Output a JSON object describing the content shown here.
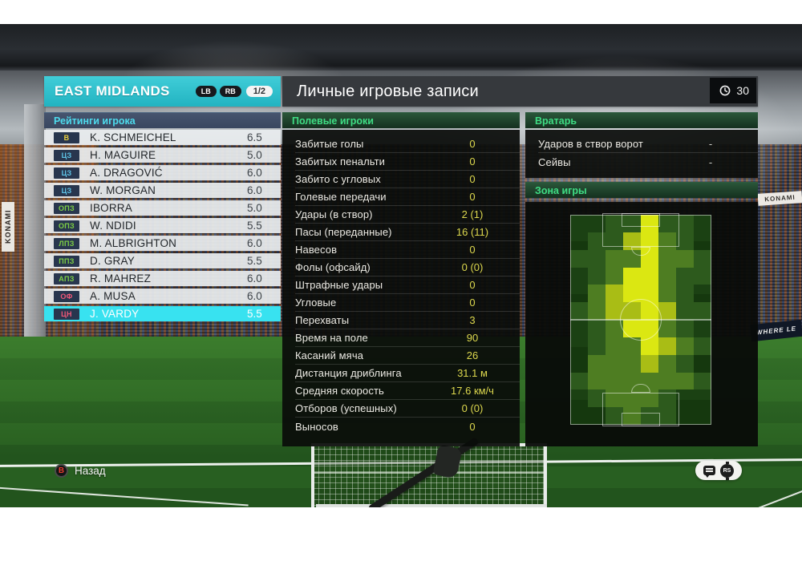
{
  "header": {
    "team_name": "EAST MIDLANDS",
    "nav_buttons": [
      "LB",
      "RB"
    ],
    "page_indicator": "1/2",
    "title": "Личные игровые записи",
    "clock_value": "30"
  },
  "ratings_panel": {
    "title": "Рейтинги игрока",
    "players": [
      {
        "pos": "В",
        "pos_type": "gk",
        "name": "K. SCHMEICHEL",
        "rating": "6.5",
        "selected": false
      },
      {
        "pos": "ЦЗ",
        "pos_type": "def",
        "name": "H. MAGUIRE",
        "rating": "5.0",
        "selected": false
      },
      {
        "pos": "ЦЗ",
        "pos_type": "def",
        "name": "A. DRAGOVIĆ",
        "rating": "6.0",
        "selected": false
      },
      {
        "pos": "ЦЗ",
        "pos_type": "def",
        "name": "W. MORGAN",
        "rating": "6.0",
        "selected": false
      },
      {
        "pos": "ОПЗ",
        "pos_type": "mid",
        "name": "IBORRA",
        "rating": "5.0",
        "selected": false
      },
      {
        "pos": "ОПЗ",
        "pos_type": "mid",
        "name": "W. NDIDI",
        "rating": "5.5",
        "selected": false
      },
      {
        "pos": "ЛПЗ",
        "pos_type": "mid",
        "name": "M. ALBRIGHTON",
        "rating": "6.0",
        "selected": false
      },
      {
        "pos": "ППЗ",
        "pos_type": "mid",
        "name": "D. GRAY",
        "rating": "5.5",
        "selected": false
      },
      {
        "pos": "АПЗ",
        "pos_type": "mid",
        "name": "R. MAHREZ",
        "rating": "6.0",
        "selected": false
      },
      {
        "pos": "ОФ",
        "pos_type": "fw",
        "name": "A. MUSA",
        "rating": "6.0",
        "selected": false
      },
      {
        "pos": "ЦН",
        "pos_type": "fw",
        "name": "J. VARDY",
        "rating": "5.5",
        "selected": true
      }
    ]
  },
  "outfield_section": {
    "title": "Полевые игроки",
    "stats": [
      {
        "label": "Забитые голы",
        "value": "0"
      },
      {
        "label": "Забитых пенальти",
        "value": "0"
      },
      {
        "label": "Забито с угловых",
        "value": "0"
      },
      {
        "label": "Голевые передачи",
        "value": "0"
      },
      {
        "label": "Удары (в створ)",
        "value": "2 (1)"
      },
      {
        "label": "Пасы (переданные)",
        "value": "16 (11)"
      },
      {
        "label": "Навесов",
        "value": "0"
      },
      {
        "label": "Фолы (офсайд)",
        "value": "0 (0)"
      },
      {
        "label": "Штрафные удары",
        "value": "0"
      },
      {
        "label": "Угловые",
        "value": "0"
      },
      {
        "label": "Перехваты",
        "value": "3"
      },
      {
        "label": "Время на поле",
        "value": "90"
      },
      {
        "label": "Касаний мяча",
        "value": "26"
      },
      {
        "label": "Дистанция дриблинга",
        "value": "31.1 м"
      },
      {
        "label": "Средняя скорость",
        "value": "17.6 км/ч"
      },
      {
        "label": "Отборов (успешных)",
        "value": "0 (0)"
      },
      {
        "label": "Выносов",
        "value": "0"
      }
    ]
  },
  "goalkeeper_section": {
    "title": "Вратарь",
    "stats": [
      {
        "label": "Ударов в створ ворот",
        "value": "-"
      },
      {
        "label": "Сейвы",
        "value": "-"
      }
    ]
  },
  "zone_section": {
    "title": "Зона игры",
    "heatmap": {
      "cols": 8,
      "rows": 12,
      "levels": [
        "transparent",
        "#2d5a1d",
        "#4e7d22",
        "#a9bd15",
        "#dbe712"
      ],
      "grid": [
        [
          0,
          0,
          1,
          1,
          4,
          1,
          1,
          0
        ],
        [
          0,
          1,
          1,
          3,
          4,
          2,
          1,
          0
        ],
        [
          1,
          1,
          2,
          2,
          4,
          2,
          2,
          1
        ],
        [
          0,
          1,
          2,
          4,
          4,
          2,
          1,
          1
        ],
        [
          0,
          2,
          3,
          4,
          4,
          2,
          1,
          0
        ],
        [
          1,
          2,
          3,
          3,
          4,
          3,
          1,
          1
        ],
        [
          0,
          1,
          2,
          4,
          4,
          2,
          1,
          0
        ],
        [
          0,
          1,
          2,
          2,
          4,
          3,
          2,
          1
        ],
        [
          0,
          2,
          2,
          2,
          3,
          2,
          1,
          0
        ],
        [
          1,
          2,
          2,
          2,
          2,
          2,
          2,
          1
        ],
        [
          0,
          1,
          2,
          2,
          2,
          1,
          0,
          0
        ],
        [
          0,
          0,
          1,
          2,
          1,
          1,
          0,
          0
        ]
      ]
    }
  },
  "footer": {
    "back_button_glyph": "B",
    "back_label": "Назад",
    "rs_button_glyph": "RS"
  },
  "background": {
    "ad_left": "KONAMI",
    "ad_right_top": "KONAMI",
    "ad_right_bottom": "WHERE LE"
  },
  "colors": {
    "accent_cyan": "#38e2f0",
    "header_teal": "#2fc0cc",
    "section_green": "#3fdd84",
    "value_yellow": "#ddd84e"
  }
}
